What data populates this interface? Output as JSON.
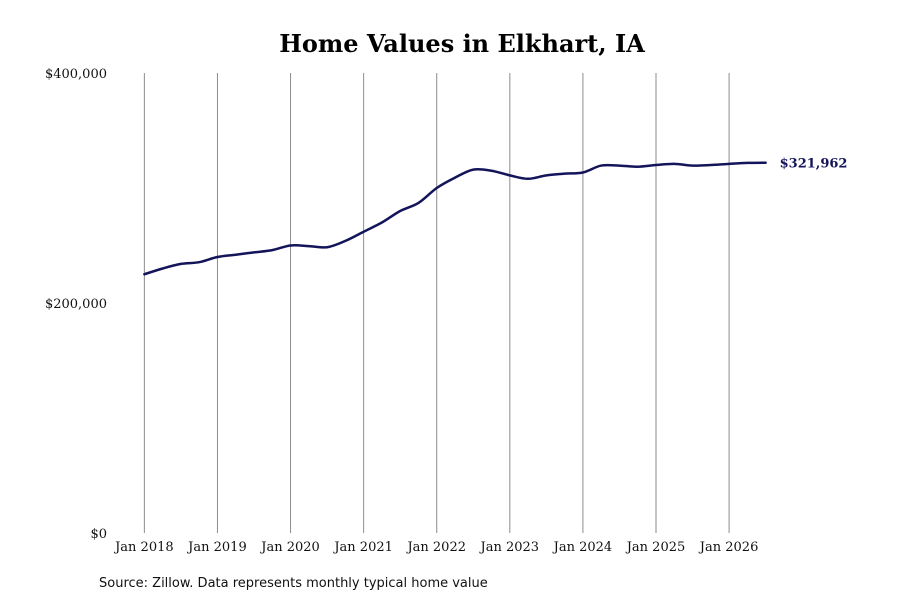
{
  "chart_data": {
    "type": "line",
    "title": "Home Values in Elkhart, IA",
    "source_note": "Source: Zillow. Data represents monthly typical home value",
    "x_tick_labels": [
      "Jan 2018",
      "Jan 2019",
      "Jan 2020",
      "Jan 2021",
      "Jan 2022",
      "Jan 2023",
      "Jan 2024",
      "Jan 2025",
      "Jan 2026"
    ],
    "y_tick_labels": [
      "$0",
      "$200,000",
      "$400,000"
    ],
    "y_ticks": [
      0,
      200000,
      400000
    ],
    "ylim": [
      0,
      400000
    ],
    "xlim": [
      "2017-09",
      "2026-11"
    ],
    "grid": "vertical",
    "series": [
      {
        "color": "#14145a",
        "end_label": "$321,962",
        "points": [
          [
            "2018-01",
            225000
          ],
          [
            "2018-04",
            230000
          ],
          [
            "2018-07",
            234000
          ],
          [
            "2018-10",
            235500
          ],
          [
            "2019-01",
            240000
          ],
          [
            "2019-04",
            242000
          ],
          [
            "2019-07",
            244000
          ],
          [
            "2019-10",
            246000
          ],
          [
            "2020-01",
            250000
          ],
          [
            "2020-04",
            249500
          ],
          [
            "2020-07",
            248500
          ],
          [
            "2020-10",
            254000
          ],
          [
            "2021-01",
            262000
          ],
          [
            "2021-04",
            270000
          ],
          [
            "2021-07",
            280000
          ],
          [
            "2021-10",
            287000
          ],
          [
            "2022-01",
            300000
          ],
          [
            "2022-04",
            309000
          ],
          [
            "2022-07",
            316000
          ],
          [
            "2022-10",
            315000
          ],
          [
            "2023-01",
            311000
          ],
          [
            "2023-04",
            308000
          ],
          [
            "2023-07",
            311000
          ],
          [
            "2023-10",
            312500
          ],
          [
            "2024-01",
            313500
          ],
          [
            "2024-04",
            319500
          ],
          [
            "2024-07",
            319500
          ],
          [
            "2024-10",
            318500
          ],
          [
            "2025-01",
            320000
          ],
          [
            "2025-04",
            321000
          ],
          [
            "2025-07",
            319500
          ],
          [
            "2025-10",
            320000
          ],
          [
            "2026-01",
            321000
          ],
          [
            "2026-04",
            321800
          ],
          [
            "2026-07",
            321962
          ]
        ]
      }
    ]
  }
}
